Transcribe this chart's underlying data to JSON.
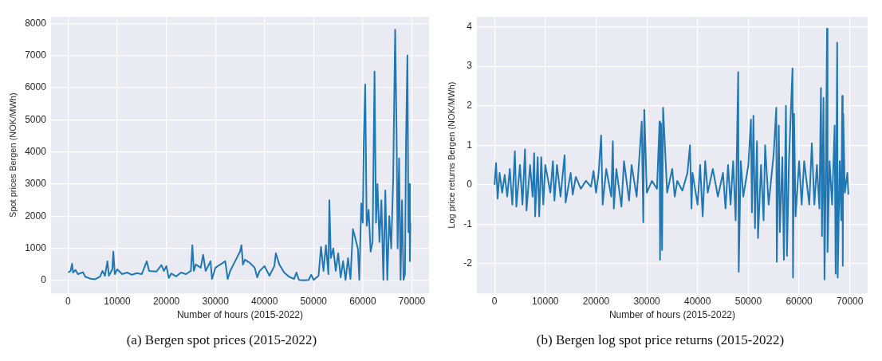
{
  "chart_data": [
    {
      "type": "line",
      "xlabel": "Number of hours (2015-2022)",
      "ylabel": "Spot prices Bergen (NOK/MWh)",
      "annotations": [
        "(a) Bergen spot prices (2015-2022)"
      ],
      "color": "#1f77b4",
      "grid": true,
      "xlim": [
        -3500,
        73500
      ],
      "xticks": [
        0,
        10000,
        20000,
        30000,
        40000,
        50000,
        60000,
        70000
      ],
      "ylim": [
        -400,
        8200
      ],
      "yticks": [
        0,
        1000,
        2000,
        3000,
        4000,
        5000,
        6000,
        7000,
        8000
      ],
      "x": [
        0,
        500,
        800,
        1000,
        1500,
        2000,
        3000,
        3500,
        4500,
        5500,
        6500,
        7000,
        7500,
        8000,
        8300,
        9000,
        9200,
        9500,
        10000,
        11000,
        12000,
        13000,
        14000,
        15000,
        16000,
        16500,
        18000,
        19000,
        19500,
        20000,
        20500,
        21000,
        22000,
        23000,
        24000,
        25000,
        25300,
        25600,
        26000,
        27000,
        27500,
        28000,
        29000,
        29300,
        30000,
        31000,
        32000,
        32500,
        33000,
        34000,
        35000,
        35300,
        35600,
        36000,
        37000,
        38000,
        38500,
        39000,
        40000,
        41000,
        42000,
        42300,
        43000,
        44000,
        45000,
        46000,
        46500,
        47000,
        48000,
        49000,
        49500,
        50000,
        51000,
        51500,
        52000,
        52500,
        53000,
        53200,
        53500,
        54000,
        54500,
        55000,
        55500,
        56000,
        56500,
        57000,
        57500,
        58000,
        58500,
        59000,
        59300,
        59700,
        60000,
        60200,
        60500,
        60800,
        61200,
        61600,
        62000,
        62400,
        62700,
        63000,
        63400,
        63800,
        64200,
        64600,
        65000,
        65400,
        65800,
        66200,
        66600,
        66900,
        67100,
        67400,
        67700,
        68000,
        68300,
        68600,
        68800,
        69100,
        69300,
        69500,
        69600,
        69700
      ],
      "values": [
        250,
        300,
        520,
        250,
        330,
        200,
        260,
        120,
        60,
        40,
        120,
        300,
        150,
        600,
        150,
        350,
        900,
        200,
        350,
        200,
        250,
        180,
        230,
        200,
        600,
        300,
        280,
        480,
        300,
        450,
        80,
        220,
        130,
        250,
        200,
        300,
        1100,
        300,
        500,
        400,
        800,
        300,
        600,
        50,
        400,
        500,
        600,
        50,
        300,
        600,
        900,
        1100,
        500,
        650,
        550,
        400,
        100,
        300,
        450,
        150,
        450,
        850,
        500,
        250,
        120,
        50,
        250,
        20,
        10,
        20,
        180,
        20,
        150,
        1050,
        300,
        1100,
        200,
        2500,
        700,
        1000,
        300,
        850,
        100,
        600,
        20,
        700,
        50,
        1600,
        1300,
        1000,
        20,
        2400,
        1800,
        4200,
        6100,
        1700,
        2200,
        900,
        1200,
        6500,
        1800,
        3000,
        1200,
        2500,
        20,
        2800,
        20,
        2000,
        1000,
        3200,
        7800,
        4500,
        1000,
        3800,
        20,
        2500,
        20,
        200,
        4200,
        7000,
        1500,
        3000,
        600,
        1800
      ]
    },
    {
      "type": "line",
      "xlabel": "Number of hours (2015-2022)",
      "ylabel": "Log price returns Bergen (NOK/MWh)",
      "annotations": [
        "(b) Bergen log spot price returns (2015-2022)"
      ],
      "color": "#1f77b4",
      "grid": true,
      "xlim": [
        -3500,
        73500
      ],
      "xticks": [
        0,
        10000,
        20000,
        30000,
        40000,
        50000,
        60000,
        70000
      ],
      "ylim": [
        -2.75,
        4.25
      ],
      "yticks": [
        -2,
        -1,
        0,
        1,
        2,
        3,
        4
      ],
      "x": [
        0,
        300,
        600,
        1000,
        1500,
        2000,
        2500,
        3000,
        3500,
        4000,
        4300,
        5000,
        5500,
        6000,
        6300,
        7000,
        7500,
        7800,
        8000,
        8500,
        8800,
        9200,
        9600,
        10000,
        11000,
        11500,
        11800,
        12300,
        13000,
        13800,
        14000,
        15000,
        15400,
        16000,
        17000,
        18000,
        19000,
        19500,
        20000,
        20500,
        21000,
        21300,
        22000,
        23000,
        23300,
        23500,
        24000,
        25000,
        25500,
        26500,
        27000,
        28000,
        29000,
        29300,
        29500,
        30000,
        31000,
        32000,
        32500,
        32600,
        32800,
        33000,
        33200,
        34000,
        35000,
        35500,
        36000,
        37000,
        38000,
        38500,
        38800,
        39000,
        40000,
        40500,
        41000,
        41500,
        42000,
        43000,
        44000,
        45000,
        45500,
        46000,
        46500,
        47000,
        47500,
        48000,
        48100,
        48500,
        49000,
        50000,
        50500,
        50700,
        51000,
        51300,
        51700,
        51900,
        52500,
        53000,
        53300,
        54000,
        55000,
        55500,
        55600,
        56000,
        56200,
        56700,
        57000,
        57400,
        57600,
        58000,
        58700,
        58800,
        59000,
        59300,
        60000,
        60500,
        61000,
        62000,
        62500,
        63000,
        63500,
        64000,
        64300,
        64500,
        64800,
        65000,
        65300,
        65500,
        65600,
        66000,
        66500,
        67000,
        67200,
        67500,
        67600,
        68000,
        68300,
        68500,
        68600,
        68700,
        69000,
        69500,
        69700
      ],
      "values": [
        0,
        0.55,
        -0.35,
        0.3,
        -0.2,
        0.25,
        -0.3,
        0.4,
        -0.5,
        0.85,
        -0.55,
        0.5,
        -0.5,
        0.9,
        -0.65,
        0.5,
        -0.3,
        0.8,
        -0.8,
        0.7,
        -0.8,
        0.7,
        -0.5,
        0.5,
        -0.2,
        0.6,
        -0.4,
        0.5,
        -0.3,
        0.75,
        -0.45,
        0.3,
        -0.25,
        0.2,
        -0.1,
        0.1,
        -0.05,
        0.35,
        -0.2,
        0.3,
        1.25,
        -0.5,
        0.4,
        -0.3,
        1.1,
        -0.6,
        0.4,
        -0.55,
        0.6,
        -0.4,
        0.5,
        -0.3,
        1.6,
        -0.95,
        1.9,
        -0.2,
        0.1,
        -0.1,
        1.6,
        -1.9,
        1.55,
        -1.65,
        1.95,
        -0.2,
        0.4,
        -0.3,
        0.1,
        -0.15,
        0.3,
        1.0,
        -0.6,
        0.3,
        -0.5,
        0.5,
        -0.8,
        0.6,
        -0.2,
        0.4,
        -0.3,
        0.3,
        -0.6,
        0.5,
        -0.5,
        0.6,
        -0.9,
        2.85,
        -2.2,
        0.6,
        -0.3,
        0.5,
        1.65,
        -0.7,
        1.75,
        -1.1,
        1.1,
        -1.35,
        0.5,
        -0.9,
        1.0,
        -0.5,
        0.8,
        1.95,
        -1.95,
        1.5,
        -1.2,
        0.7,
        -1.9,
        2.0,
        -1.8,
        0.6,
        2.95,
        -2.35,
        1.8,
        -0.8,
        0.6,
        -0.5,
        0.6,
        -0.5,
        1.05,
        -0.5,
        0.5,
        -0.6,
        2.45,
        -1.3,
        2.2,
        -2.4,
        0.8,
        3.95,
        -1.7,
        0.6,
        -0.5,
        1.5,
        -2.25,
        3.6,
        -2.35,
        0.6,
        -0.9,
        2.25,
        -2.05,
        1.8,
        -0.2,
        0.3,
        -0.25
      ]
    }
  ]
}
